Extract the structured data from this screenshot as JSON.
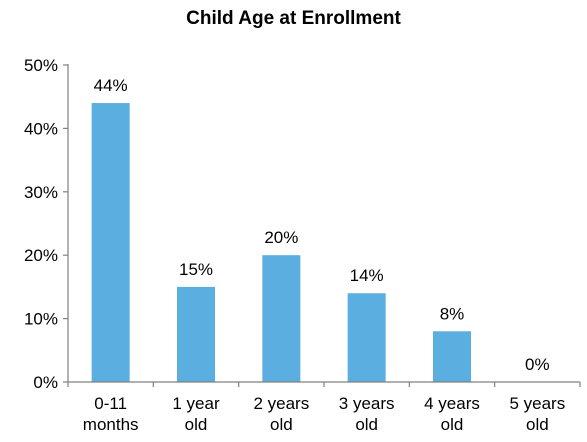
{
  "chart_data": {
    "type": "bar",
    "title": "Child Age at Enrollment",
    "categories": [
      [
        "0-11",
        "months"
      ],
      [
        "1 year",
        "old"
      ],
      [
        "2 years",
        "old"
      ],
      [
        "3 years",
        "old"
      ],
      [
        "4 years",
        "old"
      ],
      [
        "5 years",
        "old"
      ]
    ],
    "values": [
      44,
      15,
      20,
      14,
      8,
      0
    ],
    "data_labels": [
      "44%",
      "15%",
      "20%",
      "14%",
      "8%",
      "0%"
    ],
    "ylim": [
      0,
      50
    ],
    "yticks": [
      0,
      10,
      20,
      30,
      40,
      50
    ],
    "ytick_labels": [
      "0%",
      "10%",
      "20%",
      "30%",
      "40%",
      "50%"
    ],
    "xlabel": "",
    "ylabel": "",
    "grid": false,
    "legend": "none",
    "bar_color": "#5AAFE0",
    "axis_color": "#808080"
  }
}
